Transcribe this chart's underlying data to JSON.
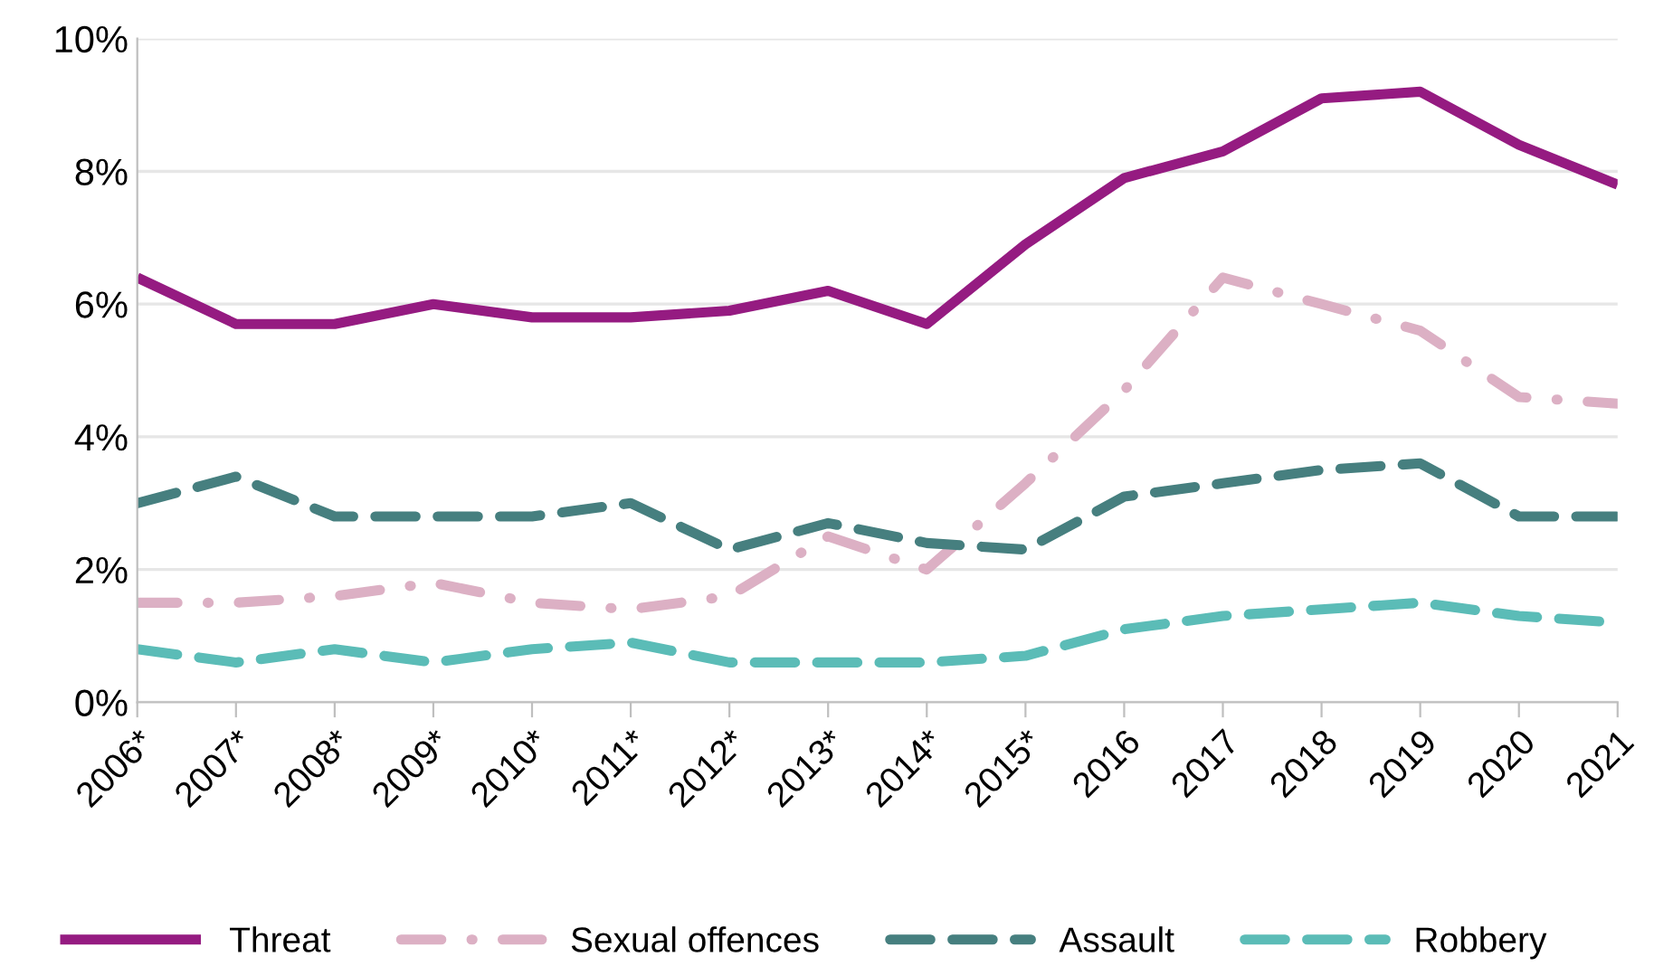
{
  "chart_data": {
    "type": "line",
    "categories": [
      "2006*",
      "2007*",
      "2008*",
      "2009*",
      "2010*",
      "2011*",
      "2012*",
      "2013*",
      "2014*",
      "2015*",
      "2016",
      "2017",
      "2018",
      "2019",
      "2020",
      "2021"
    ],
    "series": [
      {
        "name": "Threat",
        "color": "#951b81",
        "line_style": "solid",
        "values": [
          6.4,
          5.7,
          5.7,
          6.0,
          5.8,
          5.8,
          5.9,
          6.2,
          5.7,
          6.9,
          7.9,
          8.3,
          9.1,
          9.2,
          8.4,
          7.8
        ]
      },
      {
        "name": "Sexual offences",
        "color": "#dcb0c4",
        "line_style": "dashdot",
        "values": [
          1.5,
          1.5,
          1.6,
          1.8,
          1.5,
          1.4,
          1.6,
          2.5,
          2.0,
          3.3,
          4.7,
          6.4,
          6.0,
          5.6,
          4.6,
          4.5
        ]
      },
      {
        "name": "Assault",
        "color": "#467f7f",
        "line_style": "dashed",
        "values": [
          3.0,
          3.4,
          2.8,
          2.8,
          2.8,
          3.0,
          2.3,
          2.7,
          2.4,
          2.3,
          3.1,
          3.3,
          3.5,
          3.6,
          2.8,
          2.8
        ]
      },
      {
        "name": "Robbery",
        "color": "#5bbcb7",
        "line_style": "dashed",
        "values": [
          0.8,
          0.6,
          0.8,
          0.6,
          0.8,
          0.9,
          0.6,
          0.6,
          0.6,
          0.7,
          1.1,
          1.3,
          1.4,
          1.5,
          1.3,
          1.2
        ]
      }
    ],
    "ylim": [
      0,
      10
    ],
    "yticks": [
      {
        "value": 0,
        "label": "0%"
      },
      {
        "value": 2,
        "label": "2%"
      },
      {
        "value": 4,
        "label": "4%"
      },
      {
        "value": 6,
        "label": "6%"
      },
      {
        "value": 8,
        "label": "8%"
      },
      {
        "value": 10,
        "label": "10%"
      }
    ],
    "grid": "y",
    "legend": "bottom",
    "marker": "none"
  }
}
